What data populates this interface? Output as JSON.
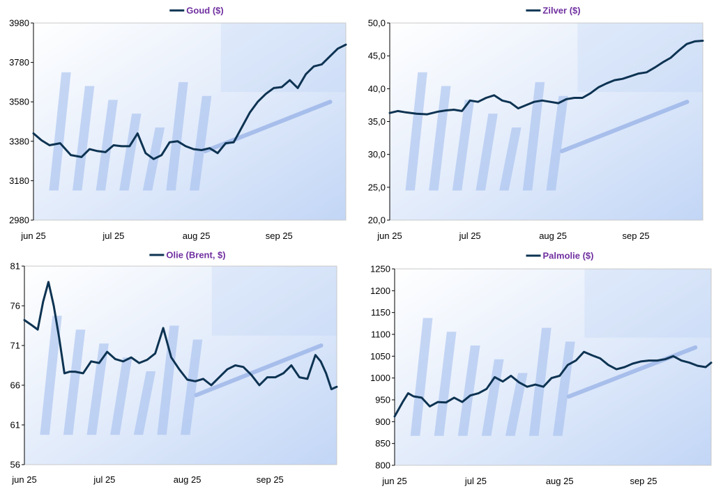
{
  "colors": {
    "line": "#0d3352",
    "legend_text": "#7030a0",
    "axis": "#000000"
  },
  "chart_data": [
    {
      "type": "line",
      "title": "Goud ($)",
      "ylim": [
        2980,
        3980
      ],
      "yticks": [
        "2980",
        "3180",
        "3380",
        "3580",
        "3780",
        "3980"
      ],
      "xtick_labels": [
        "jun 25",
        "jul 25",
        "aug 25",
        "sep 25"
      ],
      "xlim": [
        0,
        117
      ],
      "xtick_values": [
        0,
        30,
        61,
        92
      ],
      "series": [
        {
          "name": "Goud ($)",
          "x": [
            0,
            3,
            6,
            10,
            14,
            18,
            21,
            24,
            27,
            30,
            33,
            36,
            39,
            42,
            45,
            48,
            51,
            54,
            57,
            60,
            63,
            66,
            69,
            72,
            75,
            78,
            81,
            84,
            87,
            90,
            93,
            96,
            99,
            102,
            105,
            108,
            111,
            114,
            117
          ],
          "values": [
            3420,
            3385,
            3360,
            3370,
            3310,
            3300,
            3340,
            3330,
            3325,
            3360,
            3355,
            3355,
            3420,
            3320,
            3290,
            3310,
            3375,
            3380,
            3355,
            3340,
            3335,
            3345,
            3320,
            3370,
            3375,
            3450,
            3525,
            3580,
            3620,
            3650,
            3655,
            3690,
            3650,
            3720,
            3760,
            3770,
            3810,
            3850,
            3870
          ]
        }
      ]
    },
    {
      "type": "line",
      "title": "Zilver ($)",
      "ylim": [
        20,
        50
      ],
      "yticks": [
        "20,0",
        "25,0",
        "30,0",
        "35,0",
        "40,0",
        "45,0",
        "50,0"
      ],
      "xtick_labels": [
        "jun 25",
        "jul 25",
        "aug 25",
        "sep 25"
      ],
      "xlim": [
        0,
        117
      ],
      "xtick_values": [
        0,
        30,
        61,
        92
      ],
      "series": [
        {
          "name": "Zilver ($)",
          "x": [
            0,
            3,
            6,
            10,
            14,
            18,
            21,
            24,
            27,
            30,
            33,
            36,
            39,
            42,
            45,
            48,
            51,
            54,
            57,
            60,
            63,
            66,
            69,
            72,
            75,
            78,
            81,
            84,
            87,
            90,
            93,
            96,
            99,
            102,
            105,
            108,
            111,
            114,
            117
          ],
          "values": [
            36.3,
            36.6,
            36.4,
            36.2,
            36.1,
            36.5,
            36.7,
            36.8,
            36.6,
            38.2,
            38.0,
            38.6,
            39.0,
            38.2,
            37.9,
            37.0,
            37.5,
            38.0,
            38.2,
            38.0,
            37.8,
            38.4,
            38.6,
            38.6,
            39.3,
            40.2,
            40.8,
            41.3,
            41.5,
            41.9,
            42.3,
            42.5,
            43.2,
            44.0,
            44.7,
            45.8,
            46.8,
            47.2,
            47.3
          ]
        }
      ]
    },
    {
      "type": "line",
      "title": "Olie (Brent, $)",
      "ylim": [
        56,
        81
      ],
      "yticks": [
        "56",
        "61",
        "66",
        "71",
        "76",
        "81"
      ],
      "xtick_labels": [
        "jun 25",
        "jul 25",
        "aug 25",
        "sep 25"
      ],
      "xlim": [
        0,
        117
      ],
      "xtick_values": [
        0,
        30,
        61,
        92
      ],
      "series": [
        {
          "name": "Olie (Brent, $)",
          "x": [
            0,
            3,
            5,
            7,
            9,
            11,
            13,
            15,
            17,
            19,
            22,
            25,
            28,
            31,
            34,
            37,
            40,
            43,
            46,
            49,
            52,
            55,
            58,
            61,
            64,
            67,
            70,
            73,
            76,
            79,
            82,
            85,
            88,
            91,
            94,
            97,
            100,
            103,
            106,
            109,
            111,
            113,
            115,
            117
          ],
          "values": [
            74.2,
            73.5,
            73.0,
            76.5,
            79.0,
            76.0,
            72.0,
            67.5,
            67.7,
            67.7,
            67.5,
            69.0,
            68.8,
            70.2,
            69.3,
            69.0,
            69.5,
            68.8,
            69.2,
            70.0,
            73.2,
            69.5,
            68.0,
            66.7,
            66.5,
            66.8,
            66.0,
            67.0,
            68.0,
            68.5,
            68.3,
            67.3,
            66.0,
            67.0,
            67.0,
            67.5,
            68.5,
            67.0,
            66.8,
            69.8,
            69.0,
            67.5,
            65.5,
            65.8
          ]
        }
      ]
    },
    {
      "type": "line",
      "title": "Palmolie ($)",
      "ylim": [
        800,
        1250
      ],
      "yticks": [
        "800",
        "850",
        "900",
        "950",
        "1000",
        "1050",
        "1100",
        "1150",
        "1200",
        "1250"
      ],
      "xtick_labels": [
        "jun 25",
        "jul 25",
        "aug 25",
        "sep 25"
      ],
      "xlim": [
        0,
        117
      ],
      "xtick_values": [
        0,
        30,
        61,
        92
      ],
      "series": [
        {
          "name": "Palmolie ($)",
          "x": [
            0,
            3,
            5,
            7,
            10,
            13,
            16,
            19,
            22,
            25,
            28,
            31,
            34,
            37,
            40,
            43,
            46,
            49,
            52,
            55,
            58,
            61,
            64,
            67,
            70,
            73,
            76,
            79,
            82,
            85,
            88,
            91,
            94,
            97,
            100,
            103,
            106,
            109,
            112,
            115,
            117
          ],
          "values": [
            912,
            945,
            965,
            958,
            955,
            935,
            945,
            944,
            955,
            945,
            960,
            965,
            975,
            1002,
            992,
            1005,
            990,
            980,
            985,
            980,
            1000,
            1005,
            1030,
            1040,
            1060,
            1052,
            1045,
            1030,
            1020,
            1025,
            1033,
            1038,
            1040,
            1040,
            1043,
            1050,
            1040,
            1035,
            1028,
            1025,
            1035
          ]
        }
      ]
    }
  ]
}
